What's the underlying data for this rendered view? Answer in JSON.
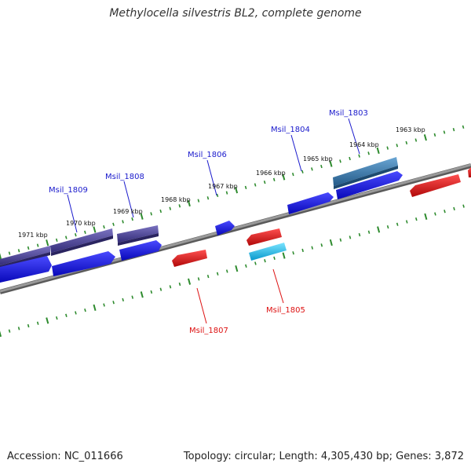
{
  "title": "Methylocella silvestris BL2, complete genome",
  "footer": {
    "accession": "Accession: NC_011666",
    "summary": "Topology: circular; Length: 4,305,430 bp; Genes: 3,872"
  },
  "colors": {
    "backbone": "#8a8a8a",
    "ruler": "#2e8b2e",
    "forward_label": "#1a1acc",
    "reverse_label": "#dd1111",
    "gene_blue": "#1010e0",
    "gene_purple": "#4a4294",
    "gene_steel": "#3a78a8",
    "gene_red": "#e01818",
    "gene_cyan": "#18c0ee"
  },
  "ruler_labels": [
    "1963 kbp",
    "1964 kbp",
    "1965 kbp",
    "1966 kbp",
    "1967 kbp",
    "1968 kbp",
    "1969 kbp",
    "1970 kbp",
    "1971 kbp"
  ],
  "gene_labels": {
    "msil_1803": "Msil_1803",
    "msil_1804": "Msil_1804",
    "msil_1806": "Msil_1806",
    "msil_1808": "Msil_1808",
    "msil_1809": "Msil_1809",
    "msil_1805": "Msil_1805",
    "msil_1807": "Msil_1807"
  }
}
